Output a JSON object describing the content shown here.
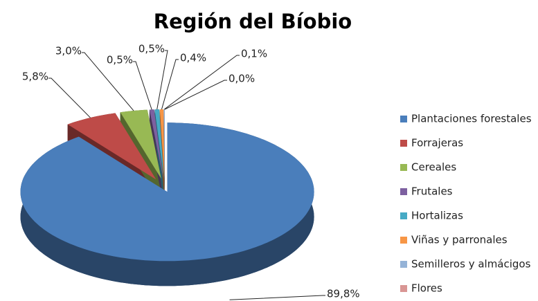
{
  "chart_data": {
    "type": "pie",
    "title": "Región del Bíobio",
    "categories": [
      "Plantaciones forestales",
      "Forrajeras",
      "Cereales",
      "Frutales",
      "Hortalizas",
      "Viñas y parronales",
      "Semilleros y almácigos",
      "Flores"
    ],
    "values": [
      89.8,
      5.8,
      3.0,
      0.5,
      0.5,
      0.4,
      0.1,
      0.0
    ],
    "value_labels": [
      "89,8%",
      "5,8%",
      "3,0%",
      "0,5%",
      "0,5%",
      "0,4%",
      "0,1%",
      "0,0%"
    ],
    "colors": [
      "#4a7ebb",
      "#be4b48",
      "#98b954",
      "#7d60a0",
      "#46aac5",
      "#f79646",
      "#95b3d7",
      "#d99694"
    ],
    "legend": "right"
  }
}
